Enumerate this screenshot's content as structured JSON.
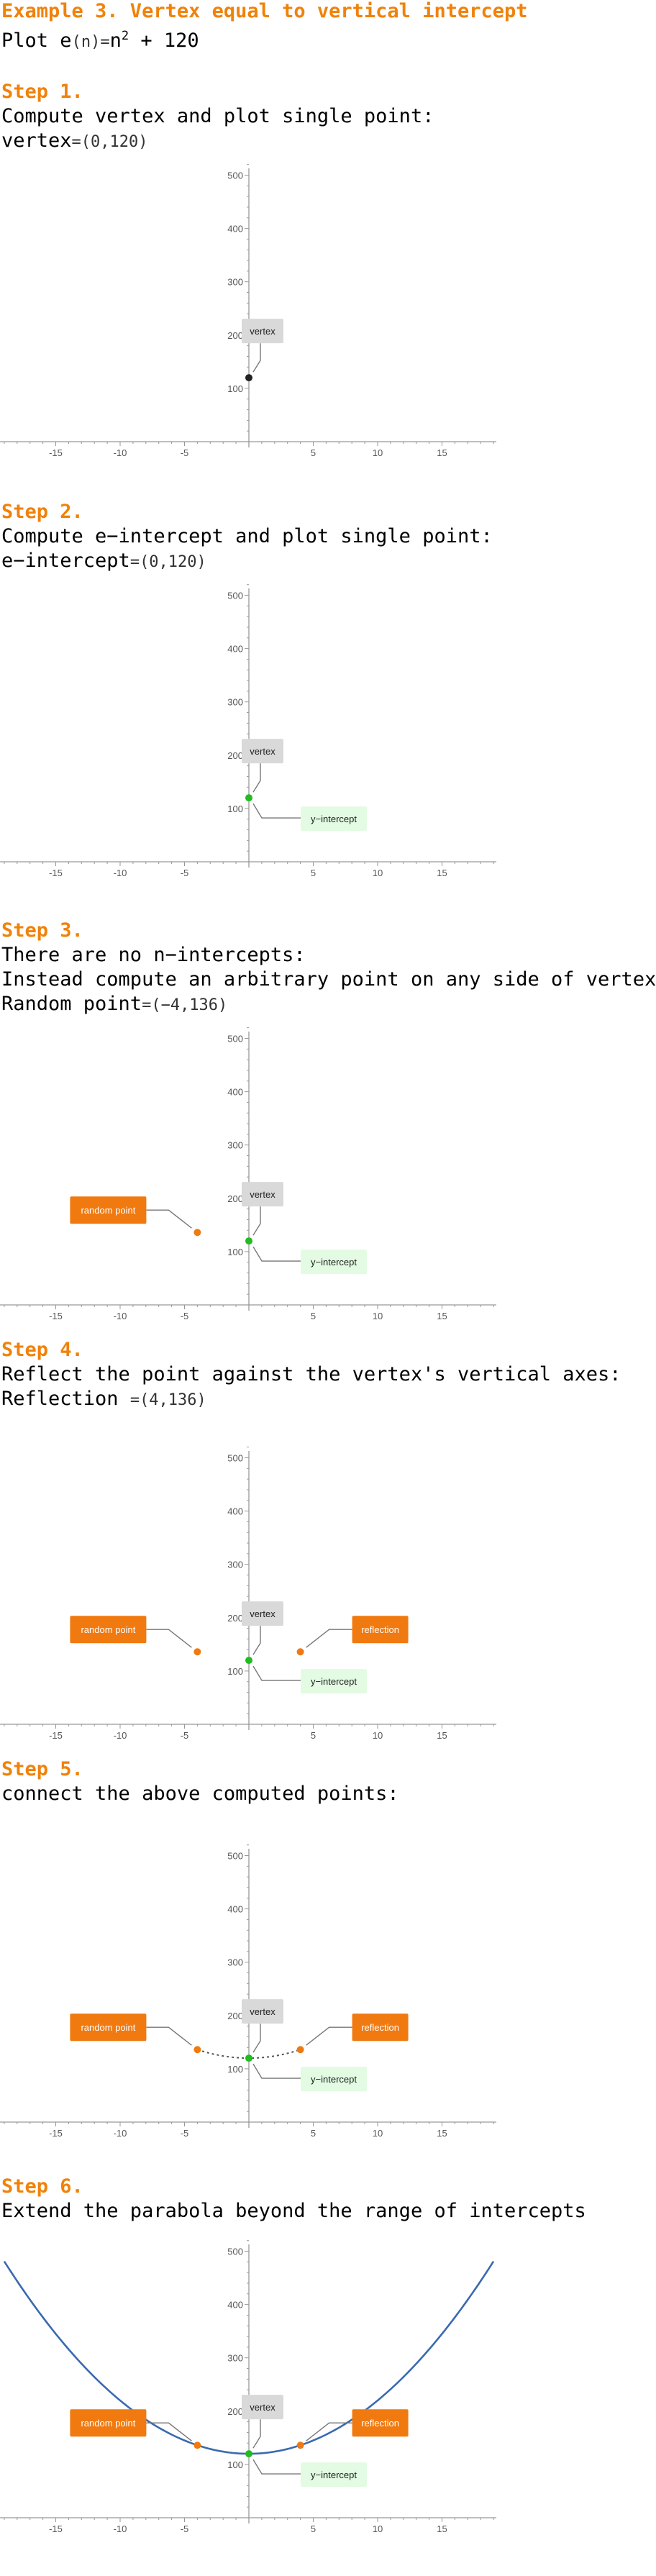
{
  "title": "Example 3. Vertex equal to vertical intercept",
  "intro": {
    "plot_word": "Plot",
    "fn": "e",
    "arg": "n",
    "eq": "=",
    "base": "n",
    "exp": "2",
    "rest": " + 120"
  },
  "steps": [
    {
      "label": "Step 1.",
      "lines": [
        {
          "text": "Compute vertex and plot single point:"
        },
        {
          "pre": "vertex",
          "eq": "=",
          "val": "(0,120)"
        }
      ]
    },
    {
      "label": "Step 2.",
      "lines": [
        {
          "text": "Compute e−intercept and plot single point:"
        },
        {
          "pre": "e−intercept",
          "eq": "=",
          "val": "(0,120)"
        }
      ]
    },
    {
      "label": "Step 3.",
      "lines": [
        {
          "text": "There are no n−intercepts:"
        },
        {
          "text": "Instead compute an arbitrary point on any side of vertex:"
        },
        {
          "pre": "Random point",
          "eq": "=",
          "val": "(−4,136)"
        }
      ]
    },
    {
      "label": "Step 4.",
      "lines": [
        {
          "text": "Reflect the point against the vertex's vertical axes:"
        },
        {
          "pre": "Reflection ",
          "eq": "=",
          "val": "(4,136)"
        }
      ]
    },
    {
      "label": "Step 5.",
      "lines": [
        {
          "text": "connect the above computed points:"
        }
      ]
    },
    {
      "label": "Step 6.",
      "lines": [
        {
          "text": "Extend the parabola beyond the range of intercepts"
        }
      ]
    }
  ],
  "colors": {
    "heading": "#f0820a",
    "vertex_dot": "#222222",
    "intercept_dot": "#22bb22",
    "point_dot": "#f07a10",
    "parabola": "#3a6ab0"
  },
  "chart_data": [
    {
      "type": "scatter",
      "xlim": [
        -19,
        19
      ],
      "ylim": [
        0,
        520
      ],
      "xticks": [
        -15,
        -10,
        -5,
        5,
        10,
        15
      ],
      "yticks": [
        100,
        200,
        300,
        400,
        500
      ],
      "points": [
        {
          "x": 0,
          "y": 120,
          "role": "vertex"
        }
      ],
      "labels": [
        "vertex"
      ],
      "curve": "none"
    },
    {
      "type": "scatter",
      "xlim": [
        -19,
        19
      ],
      "ylim": [
        0,
        520
      ],
      "xticks": [
        -15,
        -10,
        -5,
        5,
        10,
        15
      ],
      "yticks": [
        100,
        200,
        300,
        400,
        500
      ],
      "points": [
        {
          "x": 0,
          "y": 120,
          "role": "intercept"
        }
      ],
      "labels": [
        "vertex",
        "y−intercept"
      ],
      "curve": "none"
    },
    {
      "type": "scatter",
      "xlim": [
        -19,
        19
      ],
      "ylim": [
        0,
        520
      ],
      "xticks": [
        -15,
        -10,
        -5,
        5,
        10,
        15
      ],
      "yticks": [
        100,
        200,
        300,
        400,
        500
      ],
      "points": [
        {
          "x": 0,
          "y": 120,
          "role": "intercept"
        },
        {
          "x": -4,
          "y": 136,
          "role": "random"
        }
      ],
      "labels": [
        "vertex",
        "y−intercept",
        "random point"
      ],
      "curve": "none"
    },
    {
      "type": "scatter",
      "xlim": [
        -19,
        19
      ],
      "ylim": [
        0,
        520
      ],
      "xticks": [
        -15,
        -10,
        -5,
        5,
        10,
        15
      ],
      "yticks": [
        100,
        200,
        300,
        400,
        500
      ],
      "points": [
        {
          "x": 0,
          "y": 120,
          "role": "intercept"
        },
        {
          "x": -4,
          "y": 136,
          "role": "random"
        },
        {
          "x": 4,
          "y": 136,
          "role": "reflection"
        }
      ],
      "labels": [
        "vertex",
        "y−intercept",
        "random point",
        "reflection"
      ],
      "curve": "none"
    },
    {
      "type": "line",
      "xlim": [
        -19,
        19
      ],
      "ylim": [
        0,
        520
      ],
      "xticks": [
        -15,
        -10,
        -5,
        5,
        10,
        15
      ],
      "yticks": [
        100,
        200,
        300,
        400,
        500
      ],
      "points": [
        {
          "x": 0,
          "y": 120,
          "role": "intercept"
        },
        {
          "x": -4,
          "y": 136,
          "role": "random"
        },
        {
          "x": 4,
          "y": 136,
          "role": "reflection"
        }
      ],
      "labels": [
        "vertex",
        "y−intercept",
        "random point",
        "reflection"
      ],
      "curve": "dashed",
      "curve_x": [
        -4,
        4
      ]
    },
    {
      "type": "line",
      "xlim": [
        -19,
        19
      ],
      "ylim": [
        0,
        520
      ],
      "xticks": [
        -15,
        -10,
        -5,
        5,
        10,
        15
      ],
      "yticks": [
        100,
        200,
        300,
        400,
        500
      ],
      "points": [
        {
          "x": 0,
          "y": 120,
          "role": "intercept"
        },
        {
          "x": -4,
          "y": 136,
          "role": "random"
        },
        {
          "x": 4,
          "y": 136,
          "role": "reflection"
        }
      ],
      "labels": [
        "vertex",
        "y−intercept",
        "random point",
        "reflection"
      ],
      "curve": "solid",
      "curve_x": [
        -19,
        19
      ]
    }
  ]
}
